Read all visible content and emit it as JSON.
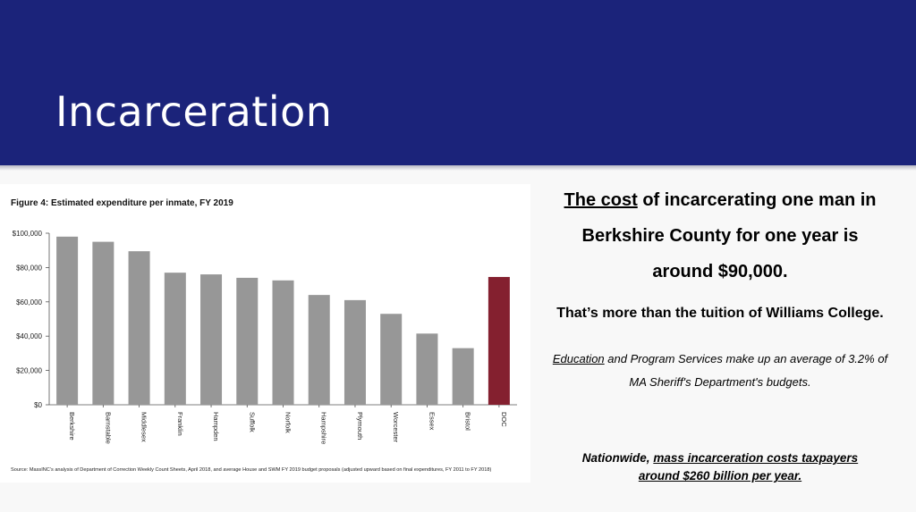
{
  "slide": {
    "title": "Incarceration"
  },
  "right_text": {
    "cost_underlined": "The cost",
    "cost_rest_line1": " of incarcerating one man in",
    "cost_line2": "Berkshire County for one year is",
    "cost_line3": "around $90,000.",
    "tuition": "That’s more than the tuition of Williams College.",
    "education_underlined": "Education",
    "education_rest": " and Program Services make up an average of 3.2% of",
    "education_line2": "MA Sheriff's Department's budgets.",
    "nationwide_prefix": "Nationwide, ",
    "nationwide_underlined_line1": "mass incarceration costs taxpayers",
    "nationwide_underlined_line2": "around $260 billion per year."
  },
  "chart_data": {
    "type": "bar",
    "title": "Figure 4: Estimated expenditure per inmate, FY 2019",
    "categories": [
      "Berkshire",
      "Barnstable",
      "Middlesex",
      "Franklin",
      "Hampden",
      "Suffolk",
      "Norfolk",
      "Hampshire",
      "Plymouth",
      "Worcester",
      "Essex",
      "Bristol",
      "DOC"
    ],
    "values": [
      98000,
      95000,
      89500,
      77000,
      76000,
      74000,
      72500,
      64000,
      61000,
      53000,
      41500,
      33000,
      74500
    ],
    "bar_colors": [
      "#979797",
      "#979797",
      "#979797",
      "#979797",
      "#979797",
      "#979797",
      "#979797",
      "#979797",
      "#979797",
      "#979797",
      "#979797",
      "#979797",
      "#84202f"
    ],
    "yticks": [
      0,
      20000,
      40000,
      60000,
      80000,
      100000
    ],
    "ytick_labels": [
      "$0",
      "$20,000",
      "$40,000",
      "$60,000",
      "$80,000",
      "$100,000"
    ],
    "ylim": [
      0,
      100000
    ],
    "xlabel": "",
    "ylabel": "",
    "grid": false,
    "source": "Source: MassINC’s analysis of Department of Correction Weekly Count Sheets, April 2018, and average House and SWM FY 2019 budget proposals (adjusted upward based on final expenditures, FY 2011 to FY 2018)"
  }
}
